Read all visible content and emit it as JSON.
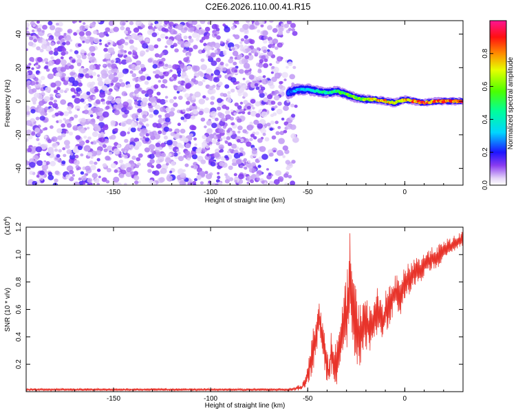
{
  "title": "C2E6.2026.110.00.41.R15",
  "chart_data": [
    {
      "type": "heatmap",
      "xlabel": "Height of straight line (km)",
      "ylabel": "Frequency (Hz)",
      "xlim": [
        -195,
        30
      ],
      "ylim": [
        -50,
        48
      ],
      "xticks": [
        -150,
        -100,
        -50,
        0
      ],
      "yticks": [
        -40,
        -20,
        0,
        20,
        40
      ],
      "colorbar": {
        "label": "Normalized spectral amplitude",
        "range": [
          0.0,
          1.0
        ],
        "ticks": [
          0.0,
          0.2,
          0.4,
          0.6,
          0.8
        ]
      },
      "noise_region_km": [
        -195,
        -57
      ],
      "signal_track": {
        "x": [
          -60,
          -55,
          -50,
          -45,
          -40,
          -35,
          -30,
          -25,
          -20,
          -15,
          -10,
          -5,
          0,
          5,
          10,
          15,
          20,
          25,
          30
        ],
        "frequency_hz": [
          5,
          7,
          7,
          6,
          5,
          6,
          4,
          2,
          1,
          1,
          0,
          -1,
          1,
          0,
          -1,
          0,
          0,
          0,
          0
        ],
        "amplitude": [
          0.25,
          0.35,
          0.4,
          0.45,
          0.5,
          0.55,
          0.6,
          0.65,
          0.7,
          0.8,
          0.85,
          0.75,
          0.85,
          0.9,
          0.95,
          0.9,
          0.95,
          0.9,
          0.95
        ]
      }
    },
    {
      "type": "line",
      "xlabel": "Height of straight line (km)",
      "ylabel": "SNR (10 * v/v)",
      "scale_label": "(x10",
      "scale_exponent": "4",
      "scale_close": ")",
      "xlim": [
        -195,
        30
      ],
      "ylim": [
        0,
        1.2
      ],
      "xticks": [
        -150,
        -100,
        -50,
        0
      ],
      "yticks": [
        0.2,
        0.4,
        0.6,
        0.8,
        1.0,
        1.2
      ],
      "series": [
        {
          "name": "SNR",
          "color": "#e8332a",
          "x": [
            -195,
            -150,
            -100,
            -60,
            -53,
            -50,
            -48,
            -46,
            -45,
            -44,
            -42,
            -40,
            -39,
            -38,
            -36,
            -35,
            -34,
            -32,
            -31,
            -30,
            -29,
            -28,
            -27,
            -26,
            -25,
            -24,
            -22,
            -21,
            -20,
            -18,
            -16,
            -15,
            -14,
            -12,
            -11,
            -10,
            -8,
            -7,
            -6,
            -4,
            -3,
            -2,
            0,
            2,
            4,
            6,
            8,
            10,
            12,
            14,
            16,
            18,
            20,
            22,
            24,
            26,
            28,
            30
          ],
          "base": [
            0.015,
            0.015,
            0.015,
            0.015,
            0.03,
            0.12,
            0.25,
            0.38,
            0.5,
            0.55,
            0.35,
            0.18,
            0.12,
            0.3,
            0.2,
            0.22,
            0.28,
            0.4,
            0.5,
            0.55,
            0.65,
            0.85,
            0.6,
            0.55,
            0.5,
            0.4,
            0.45,
            0.55,
            0.5,
            0.45,
            0.48,
            0.55,
            0.6,
            0.55,
            0.5,
            0.58,
            0.62,
            0.65,
            0.7,
            0.72,
            0.7,
            0.68,
            0.8,
            0.82,
            0.85,
            0.9,
            0.88,
            0.92,
            0.95,
            0.97,
            0.98,
            1.0,
            1.02,
            1.05,
            1.06,
            1.08,
            1.1,
            1.12
          ],
          "amp": [
            0.008,
            0.008,
            0.008,
            0.008,
            0.02,
            0.06,
            0.12,
            0.16,
            0.14,
            0.12,
            0.12,
            0.1,
            0.08,
            0.14,
            0.12,
            0.14,
            0.16,
            0.2,
            0.22,
            0.25,
            0.28,
            0.3,
            0.28,
            0.25,
            0.22,
            0.2,
            0.18,
            0.18,
            0.16,
            0.15,
            0.15,
            0.14,
            0.14,
            0.13,
            0.13,
            0.13,
            0.12,
            0.12,
            0.12,
            0.11,
            0.11,
            0.11,
            0.1,
            0.1,
            0.09,
            0.09,
            0.08,
            0.08,
            0.08,
            0.07,
            0.07,
            0.07,
            0.06,
            0.06,
            0.06,
            0.05,
            0.05,
            0.05
          ]
        }
      ]
    }
  ]
}
